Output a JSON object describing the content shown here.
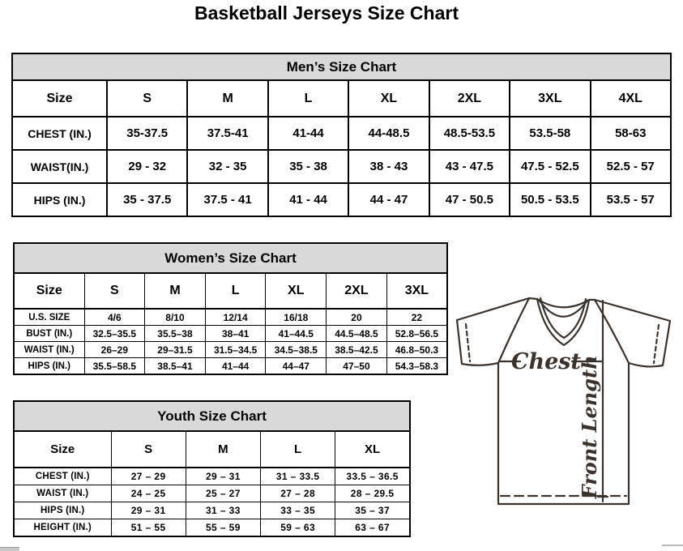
{
  "page": {
    "title": "Basketball Jerseys Size Chart"
  },
  "colors": {
    "table_header_bg": "#d9d9d9",
    "table_border": "#000000",
    "diagram_line": "#3a322d"
  },
  "tables": {
    "men": {
      "title": "Men’s Size Chart",
      "header": [
        "Size",
        "S",
        "M",
        "L",
        "XL",
        "2XL",
        "3XL",
        "4XL"
      ],
      "rows": [
        {
          "label": "CHEST (IN.)",
          "values": [
            "35-37.5",
            "37.5-41",
            "41-44",
            "44-48.5",
            "48.5-53.5",
            "53.5-58",
            "58-63"
          ]
        },
        {
          "label": "WAIST(IN.)",
          "values": [
            "29 - 32",
            "32 - 35",
            "35 - 38",
            "38 - 43",
            "43 - 47.5",
            "47.5 - 52.5",
            "52.5 - 57"
          ]
        },
        {
          "label": "HIPS (IN.)",
          "values": [
            "35 - 37.5",
            "37.5 - 41",
            "41 - 44",
            "44 - 47",
            "47 - 50.5",
            "50.5 - 53.5",
            "53.5 - 57"
          ]
        }
      ]
    },
    "women": {
      "title": "Women’s Size Chart",
      "header": [
        "Size",
        "S",
        "M",
        "L",
        "XL",
        "2XL",
        "3XL"
      ],
      "rows": [
        {
          "label": "U.S. SIZE",
          "values": [
            "4/6",
            "8/10",
            "12/14",
            "16/18",
            "20",
            "22"
          ]
        },
        {
          "label": "BUST (IN.)",
          "values": [
            "32.5–35.5",
            "35.5–38",
            "38–41",
            "41–44.5",
            "44.5–48.5",
            "52.8–56.5"
          ]
        },
        {
          "label": "WAIST (IN.)",
          "values": [
            "26–29",
            "29–31.5",
            "31.5–34.5",
            "34.5–38.5",
            "38.5–42.5",
            "46.8–50.3"
          ]
        },
        {
          "label": "HIPS (IN.)",
          "values": [
            "35.5–58.5",
            "38.5–41",
            "41–44",
            "44–47",
            "47–50",
            "54.3–58.3"
          ]
        }
      ]
    },
    "youth": {
      "title": "Youth Size Chart",
      "header": [
        "Size",
        "S",
        "M",
        "L",
        "XL"
      ],
      "rows": [
        {
          "label": "CHEST (IN.)",
          "values": [
            "27 – 29",
            "29 – 31",
            "31 – 33.5",
            "33.5 – 36.5"
          ]
        },
        {
          "label": "WAIST (IN.)",
          "values": [
            "24 – 25",
            "25 – 27",
            "27 – 28",
            "28 – 29.5"
          ]
        },
        {
          "label": "HIPS (IN.)",
          "values": [
            "29 – 31",
            "31 – 33",
            "33 – 35",
            "35 – 37"
          ]
        },
        {
          "label": "HEIGHT (IN.)",
          "values": [
            "51 – 55",
            "55 – 59",
            "59 – 63",
            "63 – 67"
          ]
        }
      ]
    }
  },
  "diagram": {
    "chest_label": "Chest",
    "front_length_label": "Front Length"
  }
}
